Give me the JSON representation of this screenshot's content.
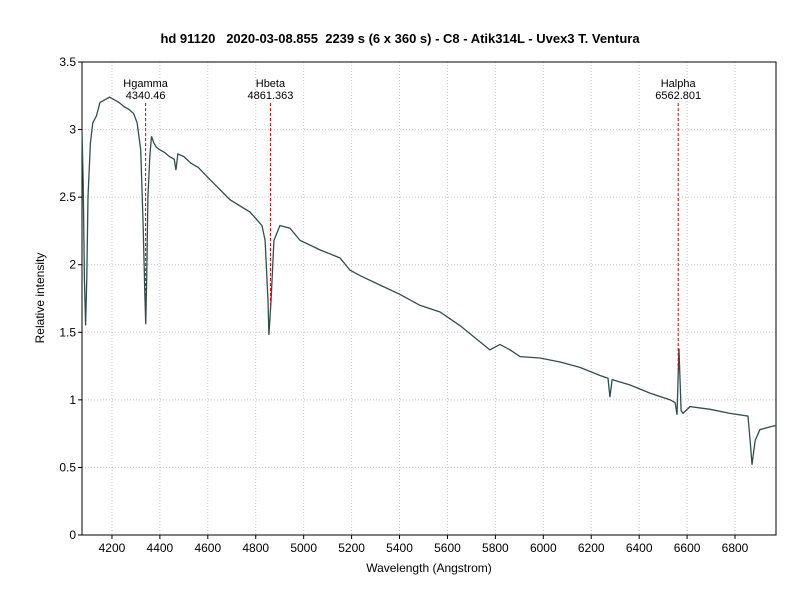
{
  "chart_data": {
    "type": "line",
    "title": "hd 91120   2020-03-08.855  2239 s (6 x 360 s) - C8 - Atik314L - Uvex3 T. Ventura",
    "xlabel": "Wavelength (Angstrom)",
    "ylabel": "Relative intensity",
    "xlim": [
      4075,
      6971
    ],
    "ylim": [
      0,
      3.5
    ],
    "xticks": [
      4200,
      4400,
      4600,
      4800,
      5000,
      5200,
      5400,
      5600,
      5800,
      6000,
      6200,
      6400,
      6600,
      6800
    ],
    "yticks": [
      0,
      0.5,
      1,
      1.5,
      2,
      2.5,
      3,
      3.5
    ],
    "grid": true,
    "annotations": [
      {
        "text": "Hgamma",
        "x": 4340.46
      },
      {
        "text": "Hbeta",
        "x": 4861.363
      },
      {
        "text": "Halpha",
        "x": 6562.801
      }
    ],
    "series": [
      {
        "color": "#2f4f4f",
        "x": [
          4075,
          4080,
          4085,
          4090,
          4095,
          4100,
          4110,
          4120,
          4135,
          4150,
          4170,
          4190,
          4210,
          4230,
          4250,
          4270,
          4290,
          4305,
          4320,
          4330,
          4337,
          4341,
          4345,
          4350,
          4358,
          4365,
          4375,
          4385,
          4400,
          4420,
          4440,
          4460,
          4467,
          4475,
          4500,
          4530,
          4560,
          4609,
          4693,
          4776,
          4826,
          4839,
          4851,
          4855,
          4864,
          4876,
          4901,
          4943,
          4985,
          5068,
          5152,
          5193,
          5235,
          5318,
          5402,
          5485,
          5569,
          5652,
          5777,
          5819,
          5861,
          5903,
          5986,
          6070,
          6153,
          6237,
          6270,
          6278,
          6287,
          6362,
          6445,
          6529,
          6550,
          6558,
          6566,
          6575,
          6583,
          6612,
          6696,
          6779,
          6854,
          6863,
          6871,
          6884,
          6904,
          6946,
          6971
        ],
        "values": [
          3.0,
          2.6,
          1.9,
          1.55,
          1.9,
          2.5,
          2.9,
          3.05,
          3.1,
          3.2,
          3.22,
          3.24,
          3.22,
          3.2,
          3.17,
          3.15,
          3.12,
          3.05,
          2.85,
          2.3,
          1.8,
          1.56,
          1.9,
          2.5,
          2.8,
          2.95,
          2.9,
          2.87,
          2.85,
          2.83,
          2.8,
          2.78,
          2.7,
          2.82,
          2.8,
          2.75,
          2.72,
          2.63,
          2.48,
          2.39,
          2.29,
          2.18,
          1.74,
          1.48,
          1.74,
          2.18,
          2.29,
          2.27,
          2.18,
          2.11,
          2.05,
          1.96,
          1.92,
          1.85,
          1.78,
          1.7,
          1.65,
          1.55,
          1.37,
          1.41,
          1.37,
          1.32,
          1.31,
          1.28,
          1.24,
          1.18,
          1.16,
          1.02,
          1.15,
          1.11,
          1.05,
          1.0,
          0.98,
          0.89,
          1.38,
          0.92,
          0.9,
          0.95,
          0.93,
          0.9,
          0.88,
          0.7,
          0.52,
          0.7,
          0.78,
          0.8,
          0.81
        ]
      }
    ]
  }
}
